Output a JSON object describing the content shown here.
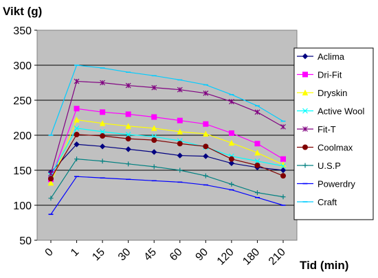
{
  "chart_data": {
    "type": "line",
    "ylabel": "Vikt (g)",
    "xlabel": "Tid (min)",
    "ylim": [
      50,
      350
    ],
    "yticks": [
      50,
      100,
      150,
      200,
      250,
      300,
      350
    ],
    "categories": [
      "0",
      "1",
      "15",
      "30",
      "45",
      "60",
      "90",
      "120",
      "180",
      "210"
    ],
    "grid": true,
    "legend_position": "right",
    "plot_background": "#c0c0c0",
    "series": [
      {
        "name": "Aclima",
        "color": "#000080",
        "marker": "diamond",
        "values": [
          147,
          187,
          184,
          180,
          176,
          171,
          170,
          160,
          154,
          150
        ]
      },
      {
        "name": "Dri-Fit",
        "color": "#ff00ff",
        "marker": "square",
        "values": [
          137,
          238,
          233,
          230,
          226,
          221,
          216,
          203,
          188,
          166
        ]
      },
      {
        "name": "Dryskin",
        "color": "#ffff00",
        "marker": "triangle",
        "values": [
          132,
          222,
          217,
          213,
          210,
          205,
          202,
          189,
          175,
          158
        ]
      },
      {
        "name": "Active Wool",
        "color": "#00ffff",
        "marker": "x",
        "values": [
          143,
          210,
          205,
          201,
          198,
          192,
          183,
          170,
          163,
          156
        ]
      },
      {
        "name": "Fit-T",
        "color": "#800080",
        "marker": "star",
        "values": [
          145,
          277,
          275,
          271,
          268,
          265,
          260,
          248,
          233,
          212
        ]
      },
      {
        "name": "Coolmax",
        "color": "#800000",
        "marker": "circle",
        "values": [
          138,
          201,
          199,
          195,
          193,
          188,
          184,
          166,
          157,
          142
        ]
      },
      {
        "name": "U.S.P",
        "color": "#008080",
        "marker": "plus",
        "values": [
          110,
          166,
          163,
          159,
          155,
          150,
          142,
          130,
          118,
          112
        ]
      },
      {
        "name": "Powerdry",
        "color": "#0000ff",
        "marker": "dash",
        "values": [
          87,
          141,
          139,
          137,
          135,
          133,
          129,
          122,
          111,
          100
        ]
      },
      {
        "name": "Craft",
        "color": "#00ccff",
        "marker": "dash",
        "values": [
          200,
          300,
          296,
          290,
          285,
          279,
          272,
          258,
          242,
          220
        ]
      }
    ]
  }
}
